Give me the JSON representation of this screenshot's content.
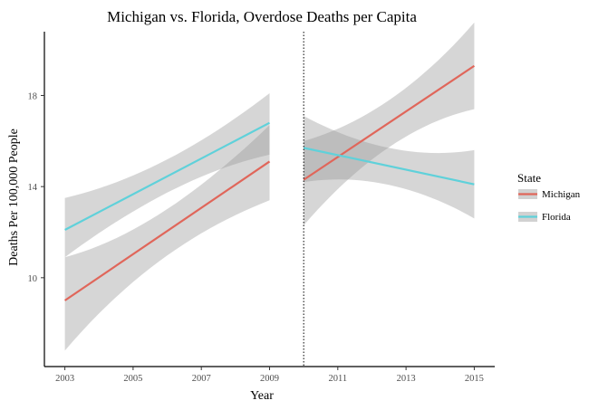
{
  "chart_data": {
    "type": "line",
    "title": "Michigan vs. Florida, Overdose Deaths per Capita",
    "xlabel": "Year",
    "ylabel": "Deaths Per 100,000 People",
    "xlim": [
      2002.4,
      2015.6
    ],
    "ylim": [
      6.1,
      20.8
    ],
    "x_ticks": [
      2003,
      2005,
      2007,
      2009,
      2011,
      2013,
      2015
    ],
    "y_ticks": [
      10,
      14,
      18
    ],
    "grid": false,
    "vline": {
      "x": 2010,
      "style": "dotted"
    },
    "legend": {
      "title": "State",
      "position": "right"
    },
    "series": [
      {
        "name": "Michigan",
        "color": "#E0665A",
        "segments": [
          {
            "x": [
              2003,
              2009
            ],
            "y": [
              9.0,
              15.1
            ],
            "lower": [
              6.8,
              13.4
            ],
            "upper": [
              10.9,
              16.7
            ]
          },
          {
            "x": [
              2010,
              2015
            ],
            "y": [
              14.3,
              19.3
            ],
            "lower": [
              12.3,
              17.4
            ],
            "upper": [
              16.0,
              21.2
            ]
          }
        ]
      },
      {
        "name": "Florida",
        "color": "#5FD1DA",
        "segments": [
          {
            "x": [
              2003,
              2009
            ],
            "y": [
              12.1,
              16.8
            ],
            "lower": [
              10.9,
              15.4
            ],
            "upper": [
              13.5,
              18.1
            ]
          },
          {
            "x": [
              2010,
              2015
            ],
            "y": [
              15.7,
              14.1
            ],
            "lower": [
              14.2,
              12.6
            ],
            "upper": [
              17.1,
              15.6
            ]
          }
        ]
      }
    ]
  }
}
